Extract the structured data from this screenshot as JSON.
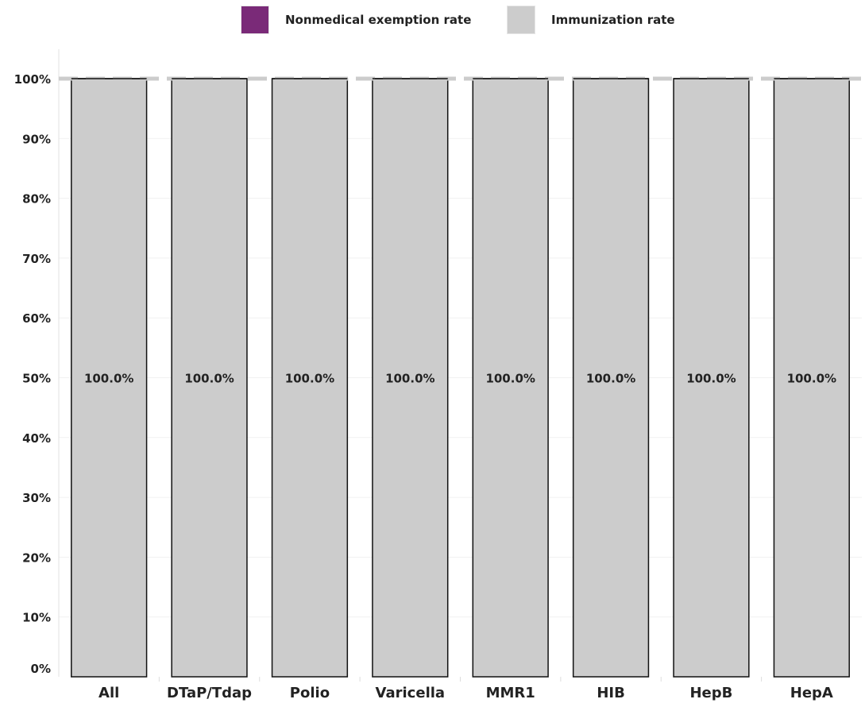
{
  "legend": [
    {
      "label": "Nonmedical exemption rate",
      "color": "#7a2a78"
    },
    {
      "label": "Immunization rate",
      "color": "#cccccc"
    }
  ],
  "chart_data": {
    "type": "bar",
    "stacked": true,
    "title": "",
    "xlabel": "",
    "ylabel": "",
    "ylim": [
      0,
      100
    ],
    "y_ticks": [
      "0%",
      "10%",
      "20%",
      "30%",
      "40%",
      "50%",
      "60%",
      "70%",
      "80%",
      "90%",
      "100%"
    ],
    "y_tick_values": [
      0,
      10,
      20,
      30,
      40,
      50,
      60,
      70,
      80,
      90,
      100
    ],
    "categories": [
      "All",
      "DTaP/Tdap",
      "Polio",
      "Varicella",
      "MMR1",
      "HIB",
      "HepB",
      "HepA"
    ],
    "series": [
      {
        "name": "Immunization rate",
        "color": "#cccccc",
        "values": [
          100,
          100,
          100,
          100,
          100,
          100,
          100,
          100
        ]
      },
      {
        "name": "Nonmedical exemption rate",
        "color": "#7a2a78",
        "values": [
          0,
          0,
          0,
          0,
          0,
          0,
          0,
          0
        ]
      }
    ],
    "data_labels": [
      "100.0%",
      "100.0%",
      "100.0%",
      "100.0%",
      "100.0%",
      "100.0%",
      "100.0%",
      "100.0%"
    ],
    "reference_line": {
      "value": 100,
      "style": "dashed",
      "color": "#cccccc"
    },
    "grid": true,
    "legend_position": "top"
  }
}
